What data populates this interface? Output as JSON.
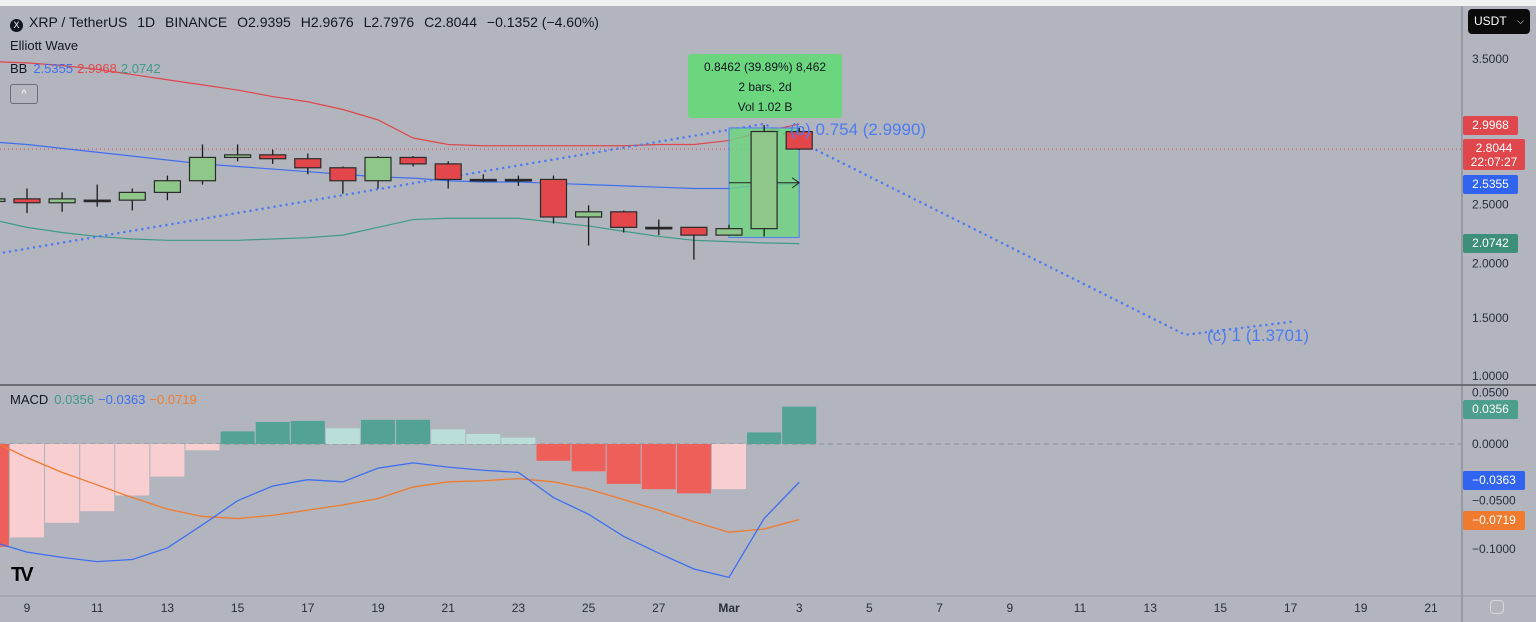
{
  "header": {
    "symbol": "XRP / TetherUS",
    "interval": "1D",
    "exchange": "BINANCE",
    "open": "O2.9395",
    "high": "H2.9676",
    "low": "L2.7976",
    "close": "C2.8044",
    "change": "−0.1352 (−4.60%)",
    "symbol_logo": "X"
  },
  "indicators": {
    "elliott": "Elliott Wave",
    "bb": {
      "label": "BB",
      "basis": "2.5355",
      "upper": "2.9968",
      "lower": "2.0742"
    },
    "collapse_icon": "^",
    "macd": {
      "label": "MACD",
      "hist": "0.0356",
      "macd": "−0.0363",
      "signal": "−0.0719"
    }
  },
  "currency_button": {
    "label": "USDT",
    "icon": "chevron-down-icon"
  },
  "price_badges": {
    "bb_upper": "2.9968",
    "last_price": "2.8044",
    "countdown": "22:07:27",
    "bb_basis": "2.5355",
    "bb_lower": "2.0742",
    "macd_hist": "0.0356",
    "macd_line": "−0.0363",
    "macd_signal": "−0.0719"
  },
  "price_axis_ticks": [
    "3.5000",
    "2.5000",
    "2.0000",
    "1.5000",
    "1.0000"
  ],
  "macd_axis_ticks": [
    "0.0500",
    "0.0000",
    "−0.0500",
    "−0.1000"
  ],
  "time_axis_ticks": [
    "9",
    "11",
    "13",
    "15",
    "17",
    "19",
    "21",
    "23",
    "25",
    "27",
    "Mar",
    "3",
    "5",
    "7",
    "9",
    "11",
    "13",
    "15",
    "17",
    "19",
    "21"
  ],
  "measure_tooltip": {
    "line1": "0.8462 (39.89%) 8,462",
    "line2": "2 bars, 2d",
    "line3": "Vol 1.02 B",
    "from_price": 2.1214,
    "to_price": 2.9676,
    "from_date": "Mar 1",
    "to_date": "Mar 3"
  },
  "elliott_wave": {
    "labels": {
      "b": "(b) 0.754 (2.9990)",
      "c": "(c) 1 (1.3701)"
    },
    "points": [
      {
        "date": "Feb 8",
        "price": 1.99
      },
      {
        "date": "Mar 2",
        "price": 2.999
      },
      {
        "date": "Mar 14",
        "price": 1.3701
      },
      {
        "date": "Mar 17",
        "price": 1.47
      }
    ]
  },
  "colors": {
    "background": "#b2b5be",
    "up": "#8fc68a",
    "down": "#e3474c",
    "bb_basis": "#3f6ef0",
    "bb_upper": "#e0474c",
    "bb_lower": "#3e9a84",
    "macd_line": "#3f6ef0",
    "signal_line": "#f07a2e",
    "hist_up_strong": "#52a395",
    "hist_up_weak": "#badfdb",
    "hist_down_strong": "#ef5f5a",
    "hist_down_weak": "#f9ced1",
    "wave": "#4d7bf3"
  },
  "chart_data": [
    {
      "type": "candlestick",
      "title": "XRP / TetherUS 1D BINANCE",
      "ylim": [
        1.0,
        3.6
      ],
      "candles": [
        {
          "date": "Feb 8",
          "o": 2.4,
          "h": 2.44,
          "l": 2.37,
          "c": 2.42
        },
        {
          "date": "Feb 9",
          "o": 2.42,
          "h": 2.5,
          "l": 2.31,
          "c": 2.39
        },
        {
          "date": "Feb 10",
          "o": 2.39,
          "h": 2.47,
          "l": 2.32,
          "c": 2.42
        },
        {
          "date": "Feb 11",
          "o": 2.41,
          "h": 2.53,
          "l": 2.36,
          "c": 2.41
        },
        {
          "date": "Feb 12",
          "o": 2.41,
          "h": 2.5,
          "l": 2.33,
          "c": 2.47
        },
        {
          "date": "Feb 13",
          "o": 2.47,
          "h": 2.6,
          "l": 2.41,
          "c": 2.56
        },
        {
          "date": "Feb 14",
          "o": 2.56,
          "h": 2.84,
          "l": 2.53,
          "c": 2.74
        },
        {
          "date": "Feb 15",
          "o": 2.74,
          "h": 2.84,
          "l": 2.71,
          "c": 2.76
        },
        {
          "date": "Feb 16",
          "o": 2.76,
          "h": 2.8,
          "l": 2.69,
          "c": 2.73
        },
        {
          "date": "Feb 17",
          "o": 2.73,
          "h": 2.77,
          "l": 2.61,
          "c": 2.66
        },
        {
          "date": "Feb 18",
          "o": 2.66,
          "h": 2.67,
          "l": 2.46,
          "c": 2.56
        },
        {
          "date": "Feb 19",
          "o": 2.56,
          "h": 2.75,
          "l": 2.5,
          "c": 2.74
        },
        {
          "date": "Feb 20",
          "o": 2.74,
          "h": 2.75,
          "l": 2.67,
          "c": 2.69
        },
        {
          "date": "Feb 21",
          "o": 2.69,
          "h": 2.71,
          "l": 2.5,
          "c": 2.57
        },
        {
          "date": "Feb 22",
          "o": 2.57,
          "h": 2.61,
          "l": 2.55,
          "c": 2.57
        },
        {
          "date": "Feb 23",
          "o": 2.57,
          "h": 2.6,
          "l": 2.52,
          "c": 2.57
        },
        {
          "date": "Feb 24",
          "o": 2.57,
          "h": 2.6,
          "l": 2.23,
          "c": 2.28
        },
        {
          "date": "Feb 25",
          "o": 2.28,
          "h": 2.37,
          "l": 2.06,
          "c": 2.32
        },
        {
          "date": "Feb 26",
          "o": 2.32,
          "h": 2.33,
          "l": 2.16,
          "c": 2.2
        },
        {
          "date": "Feb 27",
          "o": 2.2,
          "h": 2.26,
          "l": 2.14,
          "c": 2.2
        },
        {
          "date": "Feb 28",
          "o": 2.2,
          "h": 2.2,
          "l": 1.95,
          "c": 2.14
        },
        {
          "date": "Mar 1",
          "o": 2.14,
          "h": 2.22,
          "l": 2.14,
          "c": 2.19
        },
        {
          "date": "Mar 2",
          "o": 2.19,
          "h": 2.99,
          "l": 2.13,
          "c": 2.94
        },
        {
          "date": "Mar 3",
          "o": 2.9395,
          "h": 2.9676,
          "l": 2.7976,
          "c": 2.8044
        }
      ],
      "bollinger": {
        "upper": [
          3.48,
          3.47,
          3.45,
          3.42,
          3.38,
          3.34,
          3.3,
          3.26,
          3.21,
          3.17,
          3.11,
          3.03,
          2.89,
          2.84,
          2.83,
          2.83,
          2.83,
          2.83,
          2.83,
          2.84,
          2.84,
          2.87,
          2.94,
          2.9968
        ],
        "basis": [
          2.86,
          2.84,
          2.81,
          2.78,
          2.75,
          2.72,
          2.69,
          2.67,
          2.65,
          2.63,
          2.61,
          2.59,
          2.58,
          2.56,
          2.55,
          2.55,
          2.54,
          2.53,
          2.52,
          2.51,
          2.5,
          2.5,
          2.53,
          2.5355
        ],
        "lower": [
          2.26,
          2.2,
          2.16,
          2.13,
          2.11,
          2.1,
          2.1,
          2.1,
          2.11,
          2.12,
          2.14,
          2.2,
          2.26,
          2.27,
          2.27,
          2.27,
          2.24,
          2.21,
          2.17,
          2.13,
          2.1,
          2.09,
          2.08,
          2.0742
        ]
      },
      "last_price": 2.8044
    },
    {
      "type": "bar+line",
      "title": "MACD",
      "ylim": [
        -0.14,
        0.055
      ],
      "histogram": [
        -0.098,
        -0.089,
        -0.075,
        -0.064,
        -0.049,
        -0.031,
        -0.006,
        0.012,
        0.021,
        0.022,
        0.015,
        0.023,
        0.023,
        0.014,
        0.0095,
        0.006,
        -0.016,
        -0.026,
        -0.038,
        -0.043,
        -0.047,
        -0.043,
        0.011,
        0.0356
      ],
      "macd": [
        -0.093,
        -0.103,
        -0.108,
        -0.112,
        -0.11,
        -0.099,
        -0.077,
        -0.054,
        -0.04,
        -0.034,
        -0.036,
        -0.023,
        -0.018,
        -0.022,
        -0.025,
        -0.027,
        -0.051,
        -0.067,
        -0.088,
        -0.104,
        -0.119,
        -0.127,
        -0.071,
        -0.0363
      ],
      "signal": [
        0.003,
        -0.013,
        -0.027,
        -0.039,
        -0.051,
        -0.062,
        -0.069,
        -0.071,
        -0.068,
        -0.063,
        -0.058,
        -0.052,
        -0.041,
        -0.036,
        -0.035,
        -0.033,
        -0.036,
        -0.043,
        -0.053,
        -0.063,
        -0.074,
        -0.084,
        -0.081,
        -0.0719
      ]
    }
  ]
}
